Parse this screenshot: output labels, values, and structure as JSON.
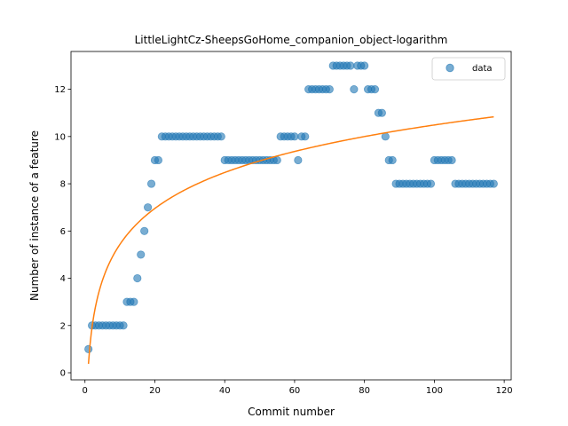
{
  "chart_data": {
    "type": "scatter",
    "title": "LittleLightCz-SheepsGoHome_companion_object-logarithm",
    "xlabel": "Commit number",
    "ylabel": "Number of instance of a feature",
    "xlim": [
      -4,
      122
    ],
    "ylim": [
      -0.3,
      13.6
    ],
    "xticks": [
      0,
      20,
      40,
      60,
      80,
      100,
      120
    ],
    "yticks": [
      0,
      2,
      4,
      6,
      8,
      10,
      12
    ],
    "legend": {
      "position": "top-right",
      "entries": [
        "data"
      ]
    },
    "colors": {
      "points": "#1f77b4",
      "fit": "#ff7f0e"
    },
    "series": [
      {
        "name": "data",
        "kind": "scatter",
        "x": [
          1,
          2,
          3,
          4,
          5,
          6,
          7,
          8,
          9,
          10,
          11,
          12,
          13,
          14,
          15,
          16,
          17,
          18,
          19,
          20,
          21,
          22,
          23,
          24,
          25,
          26,
          27,
          28,
          29,
          30,
          31,
          32,
          33,
          34,
          35,
          36,
          37,
          38,
          39,
          40,
          41,
          42,
          43,
          44,
          45,
          46,
          47,
          48,
          49,
          50,
          51,
          52,
          53,
          54,
          55,
          56,
          57,
          58,
          59,
          60,
          61,
          62,
          63,
          64,
          65,
          66,
          67,
          68,
          69,
          70,
          71,
          72,
          73,
          74,
          75,
          76,
          77,
          78,
          79,
          80,
          81,
          82,
          83,
          84,
          85,
          86,
          87,
          88,
          89,
          90,
          91,
          92,
          93,
          94,
          95,
          96,
          97,
          98,
          99,
          100,
          101,
          102,
          103,
          104,
          105,
          106,
          107,
          108,
          109,
          110,
          111,
          112,
          113,
          114,
          115,
          116,
          117
        ],
        "y": [
          1,
          2,
          2,
          2,
          2,
          2,
          2,
          2,
          2,
          2,
          2,
          3,
          3,
          3,
          4,
          5,
          6,
          7,
          8,
          9,
          9,
          10,
          10,
          10,
          10,
          10,
          10,
          10,
          10,
          10,
          10,
          10,
          10,
          10,
          10,
          10,
          10,
          10,
          10,
          9,
          9,
          9,
          9,
          9,
          9,
          9,
          9,
          9,
          9,
          9,
          9,
          9,
          9,
          9,
          9,
          10,
          10,
          10,
          10,
          10,
          9,
          10,
          10,
          12,
          12,
          12,
          12,
          12,
          12,
          12,
          13,
          13,
          13,
          13,
          13,
          13,
          12,
          13,
          13,
          13,
          12,
          12,
          12,
          11,
          11,
          10,
          9,
          9,
          8,
          8,
          8,
          8,
          8,
          8,
          8,
          8,
          8,
          8,
          8,
          9,
          9,
          9,
          9,
          9,
          9,
          8,
          8,
          8,
          8,
          8,
          8,
          8,
          8,
          8,
          8,
          8,
          8
        ]
      },
      {
        "kind": "line",
        "model": "y = a + b*ln(x)",
        "a": 0.38,
        "b": 2.195,
        "x_range": [
          1,
          117
        ]
      }
    ]
  }
}
